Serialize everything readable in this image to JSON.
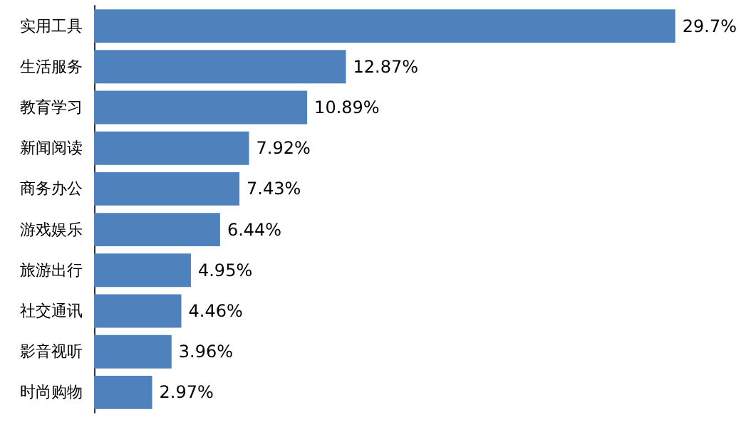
{
  "chart_data": {
    "type": "bar",
    "orientation": "horizontal",
    "categories": [
      "实用工具",
      "生活服务",
      "教育学习",
      "新闻阅读",
      "商务办公",
      "游戏娱乐",
      "旅游出行",
      "社交通讯",
      "影音视听",
      "时尚购物"
    ],
    "values": [
      29.7,
      12.87,
      10.89,
      7.92,
      7.43,
      6.44,
      4.95,
      4.46,
      3.96,
      2.97
    ],
    "value_labels": [
      "29.7%",
      "12.87%",
      "10.89%",
      "7.92%",
      "7.43%",
      "6.44%",
      "4.95%",
      "4.46%",
      "3.96%",
      "2.97%"
    ],
    "color": "#4f81bd"
  }
}
